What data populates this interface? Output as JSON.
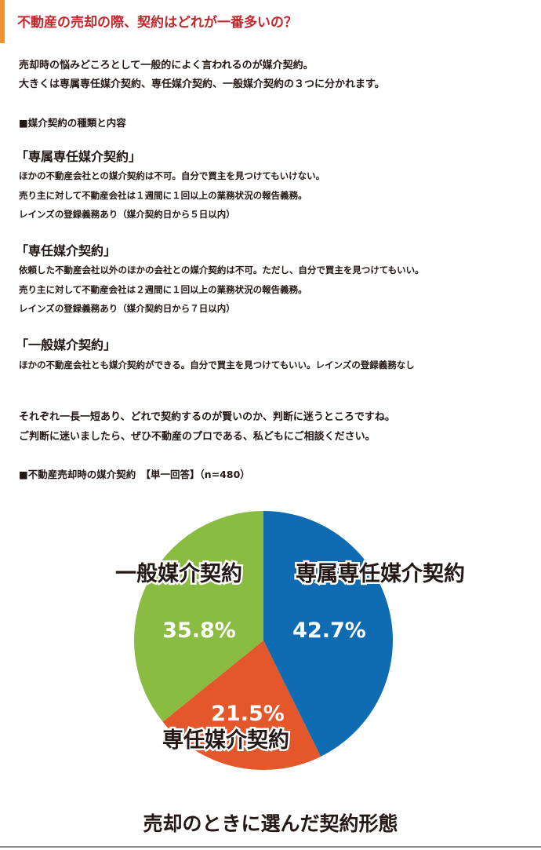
{
  "title": "不動産の売却の際、契約はどれが一番多いの？",
  "intro": [
    "売却時の悩みどころとして一般的によく言われるのが媒介契約。",
    "大きくは専属専任媒介契約、専任媒介契約、一般媒介契約の３つに分かれます。"
  ],
  "section_heading": "■媒介契約の種類と内容",
  "contracts": [
    {
      "name": "「専属専任媒介契約」",
      "lines": [
        "ほかの不動産会社との媒介契約は不可。自分で買主を見つけてもいけない。",
        "売り主に対して不動産会社は１週間に１回以上の業務状況の報告義務。",
        "レインズの登録義務あり（媒介契約日から５日以内）"
      ]
    },
    {
      "name": "「専任媒介契約」",
      "lines": [
        "依頼した不動産会社以外のほかの会社との媒介契約は不可。ただし、自分で買主を見つけてもいい。",
        "売り主に対して不動産会社は２週間に１回以上の業務状況の報告義務。",
        "レインズの登録義務あり（媒介契約日から７日以内）"
      ]
    },
    {
      "name": "「一般媒介契約」",
      "lines": [
        "ほかの不動産会社とも媒介契約ができる。自分で買主を見つけてもいい。レインズの登録義務なし"
      ]
    }
  ],
  "closing": [
    "それぞれ一長一短あり、どれで契約するのが賢いのか、判断に迷うところですね。",
    "ご判断に迷いましたら、ぜひ不動産のプロである、私どもにご相談ください。"
  ],
  "chart_heading": "■不動産売却時の媒介契約　【単一回答】（n=480）",
  "chart_data": {
    "type": "pie",
    "title": "売却のときに選んだ契約形態",
    "categories": [
      "専属専任媒介契約",
      "専任媒介契約",
      "一般媒介契約"
    ],
    "values": [
      42.7,
      21.5,
      35.8
    ],
    "labels": [
      "42.7%",
      "21.5%",
      "35.8%"
    ],
    "colors": [
      "#0f6cb3",
      "#e4572a",
      "#89bc41"
    ],
    "start": "12 o'clock, clockwise"
  }
}
